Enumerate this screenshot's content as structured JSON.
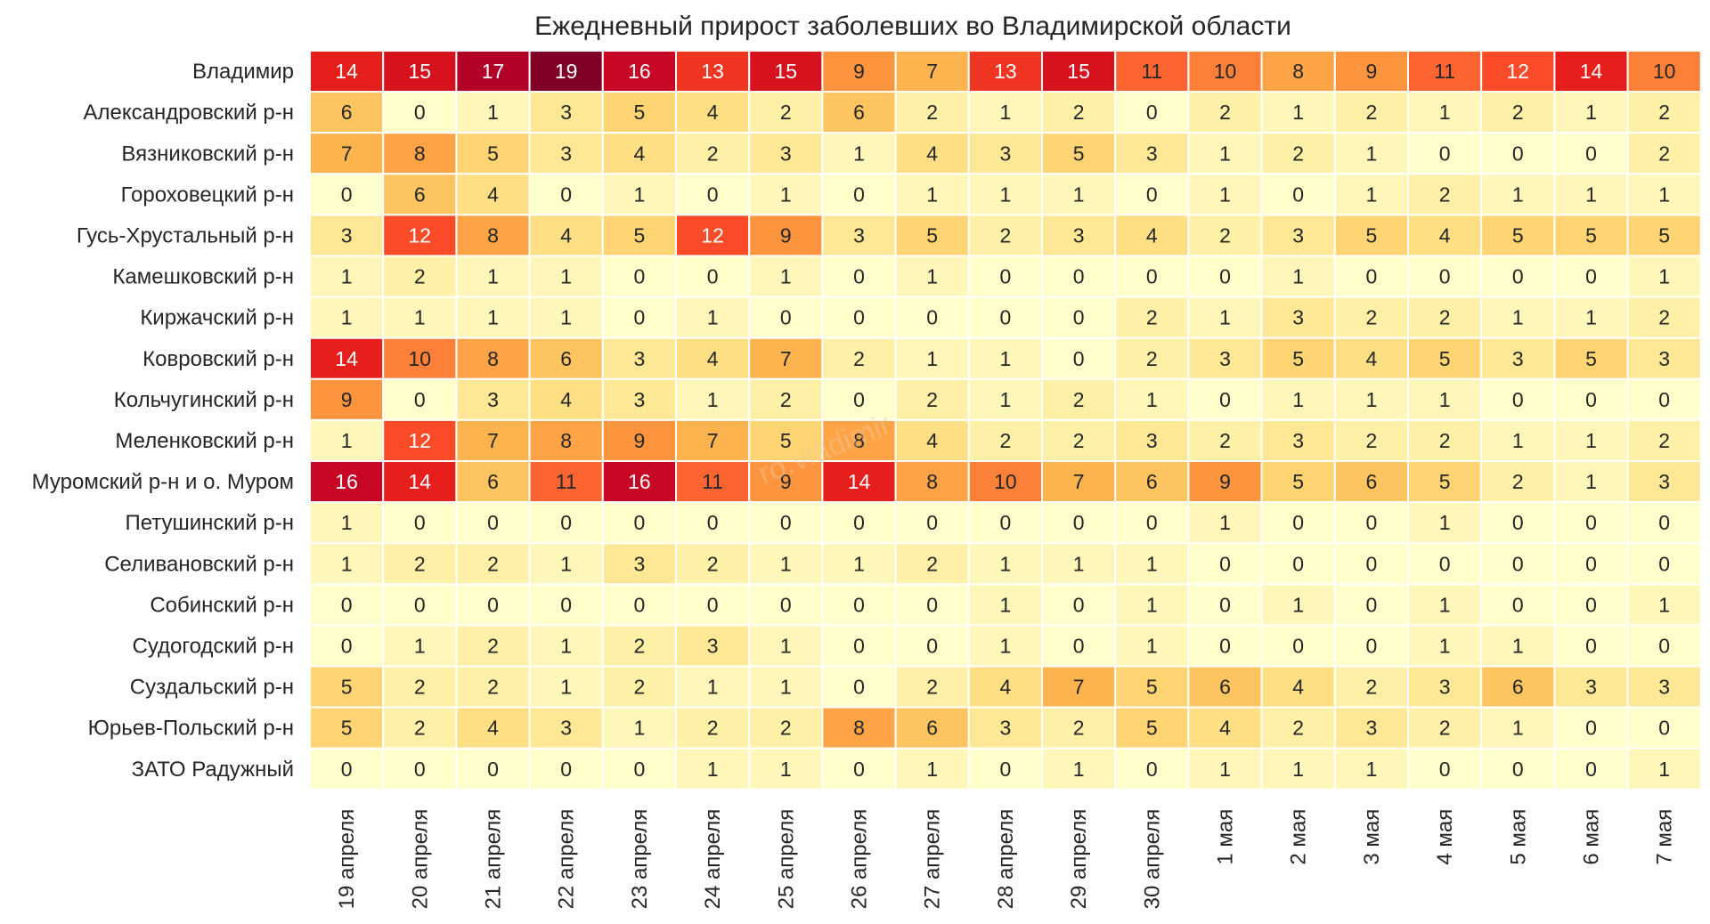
{
  "chart_data": {
    "type": "heatmap",
    "title": "Ежедневный прирост заболевших во Владимирской области",
    "watermark": "ro.vladimir",
    "rows": [
      "Владимир",
      "Александровский р-н",
      "Вязниковский р-н",
      "Гороховецкий р-н",
      "Гусь-Хрустальный р-н",
      "Камешковский р-н",
      "Киржачский р-н",
      "Ковровский р-н",
      "Кольчугинский р-н",
      "Меленковский р-н",
      "Муромский р-н и о. Муром",
      "Петушинский р-н",
      "Селивановский р-н",
      "Собинский р-н",
      "Судогодский р-н",
      "Суздальский р-н",
      "Юрьев-Польский р-н",
      "ЗАТО Радужный"
    ],
    "columns": [
      "19 апреля",
      "20 апреля",
      "21 апреля",
      "22 апреля",
      "23 апреля",
      "24 апреля",
      "25 апреля",
      "26 апреля",
      "27 апреля",
      "28 апреля",
      "29 апреля",
      "30 апреля",
      "1 мая",
      "2 мая",
      "3 мая",
      "4 мая",
      "5 мая",
      "6 мая",
      "7 мая"
    ],
    "values": [
      [
        14,
        15,
        17,
        19,
        16,
        13,
        15,
        9,
        7,
        13,
        15,
        11,
        10,
        8,
        9,
        11,
        12,
        14,
        10
      ],
      [
        6,
        0,
        1,
        3,
        5,
        4,
        2,
        6,
        2,
        1,
        2,
        0,
        2,
        1,
        2,
        1,
        2,
        1,
        2
      ],
      [
        7,
        8,
        5,
        3,
        4,
        2,
        3,
        1,
        4,
        3,
        5,
        3,
        1,
        2,
        1,
        0,
        0,
        0,
        2
      ],
      [
        0,
        6,
        4,
        0,
        1,
        0,
        1,
        0,
        1,
        1,
        1,
        0,
        1,
        0,
        1,
        2,
        1,
        1,
        1
      ],
      [
        3,
        12,
        8,
        4,
        5,
        12,
        9,
        3,
        5,
        2,
        3,
        4,
        2,
        3,
        5,
        4,
        5,
        5,
        5
      ],
      [
        1,
        2,
        1,
        1,
        0,
        0,
        1,
        0,
        1,
        0,
        0,
        0,
        0,
        1,
        0,
        0,
        0,
        0,
        1
      ],
      [
        1,
        1,
        1,
        1,
        0,
        1,
        0,
        0,
        0,
        0,
        0,
        2,
        1,
        3,
        2,
        2,
        1,
        1,
        2
      ],
      [
        14,
        10,
        8,
        6,
        3,
        4,
        7,
        2,
        1,
        1,
        0,
        2,
        3,
        5,
        4,
        5,
        3,
        5,
        3
      ],
      [
        9,
        0,
        3,
        4,
        3,
        1,
        2,
        0,
        2,
        1,
        2,
        1,
        0,
        1,
        1,
        1,
        0,
        0,
        0
      ],
      [
        1,
        12,
        7,
        8,
        9,
        7,
        5,
        8,
        4,
        2,
        2,
        3,
        2,
        3,
        2,
        2,
        1,
        1,
        2
      ],
      [
        16,
        14,
        6,
        11,
        16,
        11,
        9,
        14,
        8,
        10,
        7,
        6,
        9,
        5,
        6,
        5,
        2,
        1,
        3
      ],
      [
        1,
        0,
        0,
        0,
        0,
        0,
        0,
        0,
        0,
        0,
        0,
        0,
        1,
        0,
        0,
        1,
        0,
        0,
        0
      ],
      [
        1,
        2,
        2,
        1,
        3,
        2,
        1,
        1,
        2,
        1,
        1,
        1,
        0,
        0,
        0,
        0,
        0,
        0,
        0
      ],
      [
        0,
        0,
        0,
        0,
        0,
        0,
        0,
        0,
        0,
        1,
        0,
        1,
        0,
        1,
        0,
        1,
        0,
        0,
        1
      ],
      [
        0,
        1,
        2,
        1,
        2,
        3,
        1,
        0,
        0,
        1,
        0,
        1,
        0,
        0,
        0,
        1,
        1,
        0,
        0
      ],
      [
        5,
        2,
        2,
        1,
        2,
        1,
        1,
        0,
        2,
        4,
        7,
        5,
        6,
        4,
        2,
        3,
        6,
        3,
        3
      ],
      [
        5,
        2,
        4,
        3,
        1,
        2,
        2,
        8,
        6,
        3,
        2,
        5,
        4,
        2,
        3,
        2,
        1,
        0,
        0
      ],
      [
        0,
        0,
        0,
        0,
        0,
        1,
        1,
        0,
        1,
        0,
        1,
        0,
        1,
        1,
        1,
        0,
        0,
        0,
        1
      ]
    ],
    "vmin": 0,
    "vmax": 19,
    "colormap": [
      "#ffffcc",
      "#ffeda0",
      "#fed976",
      "#feb24c",
      "#fd8d3c",
      "#fc4e2a",
      "#e31a1c",
      "#bd0026",
      "#800026"
    ],
    "grid": false,
    "legend": "none"
  }
}
